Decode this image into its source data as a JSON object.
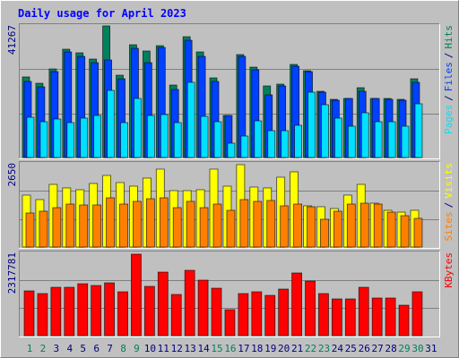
{
  "chart_data": [
    {
      "type": "bar",
      "title": "Daily usage for April 2023",
      "separator": "/",
      "categories": [
        "1",
        "2",
        "3",
        "4",
        "5",
        "6",
        "7",
        "8",
        "9",
        "10",
        "11",
        "12",
        "13",
        "14",
        "15",
        "16",
        "17",
        "18",
        "19",
        "20",
        "21",
        "22",
        "23",
        "24",
        "25",
        "26",
        "27",
        "28",
        "29",
        "30",
        "31"
      ],
      "category_colors": [
        "#00805c",
        "#00805c",
        "#000080",
        "#000080",
        "#000080",
        "#000080",
        "#000080",
        "#00805c",
        "#00805c",
        "#000080",
        "#000080",
        "#000080",
        "#000080",
        "#000080",
        "#00805c",
        "#00805c",
        "#000080",
        "#000080",
        "#000080",
        "#000080",
        "#000080",
        "#00805c",
        "#00805c",
        "#000080",
        "#000080",
        "#000080",
        "#000080",
        "#000080",
        "#00805c",
        "#00805c",
        "#000080"
      ],
      "ylim": [
        0,
        41267
      ],
      "yticks": [
        41267
      ],
      "grid_values": [
        13756,
        27511
      ],
      "grid": true,
      "series": [
        {
          "name": "Hits",
          "color": "#00805c",
          "values": [
            25100,
            23140,
            27600,
            33740,
            32620,
            30670,
            41000,
            25650,
            35130,
            33180,
            34850,
            22580,
            37640,
            32900,
            24810,
            13100,
            32060,
            28160,
            22300,
            22860,
            29000,
            27040,
            20630,
            18120,
            18400,
            21750,
            18400,
            18400,
            18120,
            24530,
            null
          ]
        },
        {
          "name": "Files",
          "color": "#0040ff",
          "values": [
            23700,
            22030,
            26760,
            32900,
            31500,
            29550,
            30390,
            24530,
            34010,
            29550,
            34290,
            21190,
            36520,
            31500,
            23700,
            13100,
            31500,
            27320,
            19520,
            22300,
            28440,
            26760,
            20350,
            17840,
            18400,
            20630,
            18400,
            18120,
            17840,
            23420,
            null
          ]
        },
        {
          "name": "Pages",
          "color": "#00e0ff",
          "values": [
            12550,
            11150,
            11990,
            10870,
            12270,
            13100,
            20910,
            10870,
            18400,
            13100,
            13380,
            10870,
            23420,
            12820,
            11150,
            4460,
            6690,
            11430,
            8360,
            8360,
            10040,
            20350,
            16450,
            12270,
            9760,
            13940,
            11150,
            11150,
            9760,
            16730,
            null
          ]
        }
      ]
    },
    {
      "type": "bar",
      "ylim": [
        0,
        2650
      ],
      "yticks": [
        2650
      ],
      "grid_values": [
        883,
        1767
      ],
      "grid": true,
      "series": [
        {
          "name": "Visits",
          "color": "#ffff00",
          "values": [
            1635,
            1494,
            1973,
            1861,
            1804,
            2002,
            2255,
            2030,
            1917,
            2171,
            2453,
            1776,
            1776,
            1804,
            2453,
            1917,
            2594,
            1889,
            1861,
            2199,
            2368,
            1297,
            1269,
            1212,
            1635,
            1973,
            1381,
            1156,
            1099,
            1156,
            null
          ]
        },
        {
          "name": "Sites",
          "color": "#ff8000",
          "values": [
            1071,
            1128,
            1240,
            1353,
            1325,
            1325,
            1550,
            1353,
            1438,
            1522,
            1550,
            1240,
            1438,
            1240,
            1353,
            1156,
            1494,
            1438,
            1466,
            1297,
            1353,
            1269,
            874,
            1128,
            1353,
            1381,
            1353,
            1099,
            987,
            902,
            null
          ]
        }
      ]
    },
    {
      "type": "bar",
      "ylim": [
        0,
        2317781
      ],
      "yticks": [
        2317781
      ],
      "grid_values": [
        772594,
        1545187
      ],
      "grid": true,
      "series": [
        {
          "name": "KBytes",
          "color": "#ff0000",
          "values": [
            1246000,
            1171000,
            1346000,
            1346000,
            1445000,
            1396000,
            1470000,
            1221000,
            2268000,
            1371000,
            1769000,
            1146000,
            1819000,
            1545000,
            1321000,
            723000,
            1171000,
            1221000,
            1121000,
            1296000,
            1745000,
            1520000,
            1171000,
            1022000,
            1022000,
            1346000,
            1047000,
            1047000,
            847000,
            1221000,
            null
          ]
        }
      ]
    }
  ]
}
